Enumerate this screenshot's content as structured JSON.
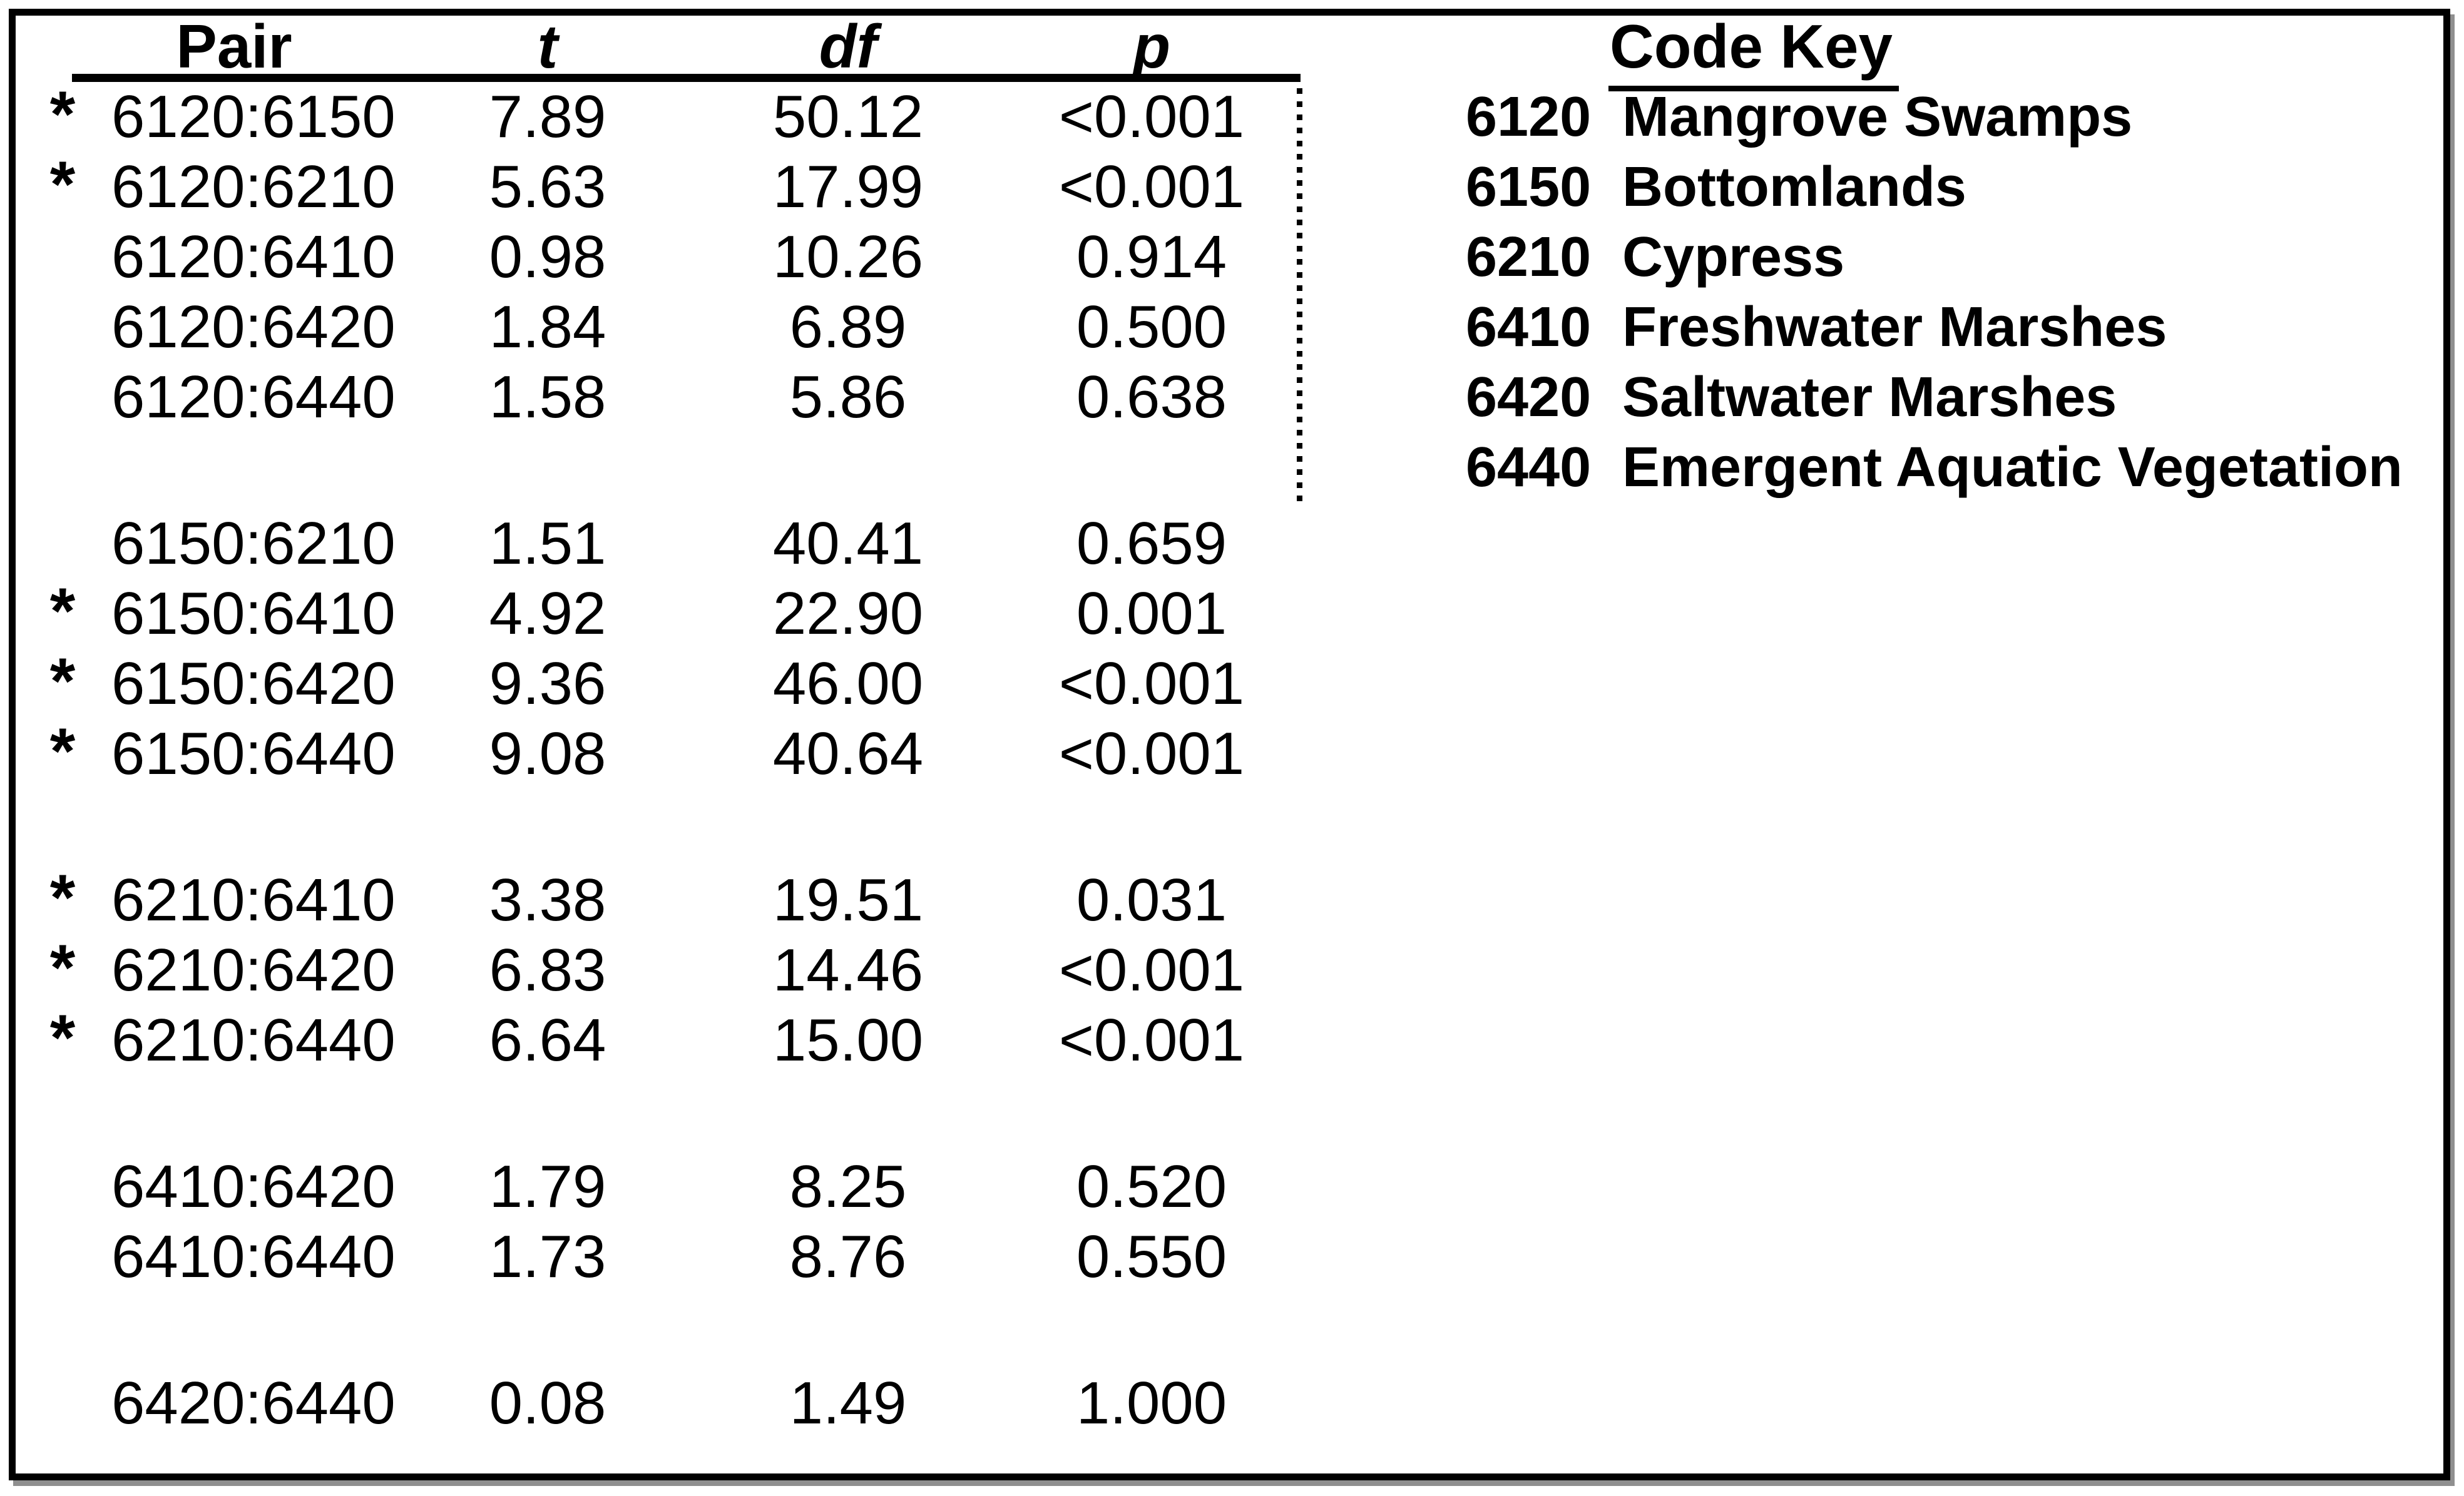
{
  "table": {
    "headers": {
      "pair": "Pair",
      "t": "t",
      "df": "df",
      "p": "p"
    },
    "sig_marker": "*",
    "groups": [
      {
        "rows": [
          {
            "sig_mark": "*",
            "pair": "6120:6150",
            "t": "7.89",
            "df": "50.12",
            "p": "<0.001"
          },
          {
            "sig_mark": "*",
            "pair": "6120:6210",
            "t": "5.63",
            "df": "17.99",
            "p": "<0.001"
          },
          {
            "sig_mark": "",
            "pair": "6120:6410",
            "t": "0.98",
            "df": "10.26",
            "p": "0.914"
          },
          {
            "sig_mark": "",
            "pair": "6120:6420",
            "t": "1.84",
            "df": "6.89",
            "p": "0.500"
          },
          {
            "sig_mark": "",
            "pair": "6120:6440",
            "t": "1.58",
            "df": "5.86",
            "p": "0.638"
          }
        ]
      },
      {
        "rows": [
          {
            "sig_mark": "",
            "pair": "6150:6210",
            "t": "1.51",
            "df": "40.41",
            "p": "0.659"
          },
          {
            "sig_mark": "*",
            "pair": "6150:6410",
            "t": "4.92",
            "df": "22.90",
            "p": "0.001"
          },
          {
            "sig_mark": "*",
            "pair": "6150:6420",
            "t": "9.36",
            "df": "46.00",
            "p": "<0.001"
          },
          {
            "sig_mark": "*",
            "pair": "6150:6440",
            "t": "9.08",
            "df": "40.64",
            "p": "<0.001"
          }
        ]
      },
      {
        "rows": [
          {
            "sig_mark": "*",
            "pair": "6210:6410",
            "t": "3.38",
            "df": "19.51",
            "p": "0.031"
          },
          {
            "sig_mark": "*",
            "pair": "6210:6420",
            "t": "6.83",
            "df": "14.46",
            "p": "<0.001"
          },
          {
            "sig_mark": "*",
            "pair": "6210:6440",
            "t": "6.64",
            "df": "15.00",
            "p": "<0.001"
          }
        ]
      },
      {
        "rows": [
          {
            "sig_mark": "",
            "pair": "6410:6420",
            "t": "1.79",
            "df": "8.25",
            "p": "0.520"
          },
          {
            "sig_mark": "",
            "pair": "6410:6440",
            "t": "1.73",
            "df": "8.76",
            "p": "0.550"
          }
        ]
      },
      {
        "rows": [
          {
            "sig_mark": "",
            "pair": "6420:6440",
            "t": "0.08",
            "df": "1.49",
            "p": "1.000"
          }
        ]
      }
    ]
  },
  "code_key": {
    "title": "Code Key",
    "entries": [
      {
        "code": "6120",
        "label": "Mangrove Swamps"
      },
      {
        "code": "6150",
        "label": "Bottomlands"
      },
      {
        "code": "6210",
        "label": "Cypress"
      },
      {
        "code": "6410",
        "label": "Freshwater Marshes"
      },
      {
        "code": "6420",
        "label": "Saltwater Marshes"
      },
      {
        "code": "6440",
        "label": "Emergent Aquatic Vegetation"
      }
    ]
  }
}
